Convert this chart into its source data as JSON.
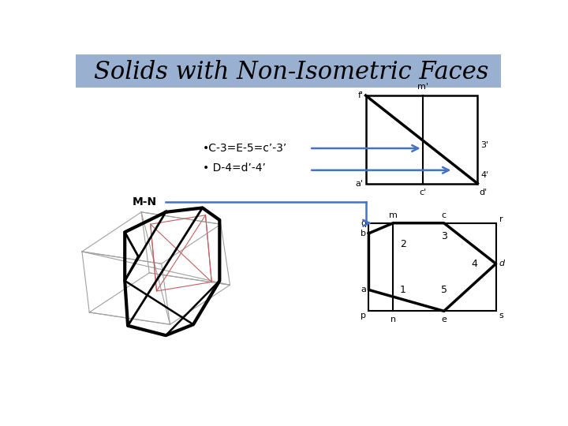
{
  "title": "Solids with Non-Isometric Faces",
  "title_bg_color": "#9ab0d0",
  "title_fontsize": 22,
  "bullet1": "•C-3=E-5=c’-3’",
  "bullet2": "• D-4=d’-4’",
  "arrow_color": "#4472c4",
  "line_color": "#000000",
  "line_color_red": "#c06060",
  "line_color_gray": "#a0a0a0"
}
